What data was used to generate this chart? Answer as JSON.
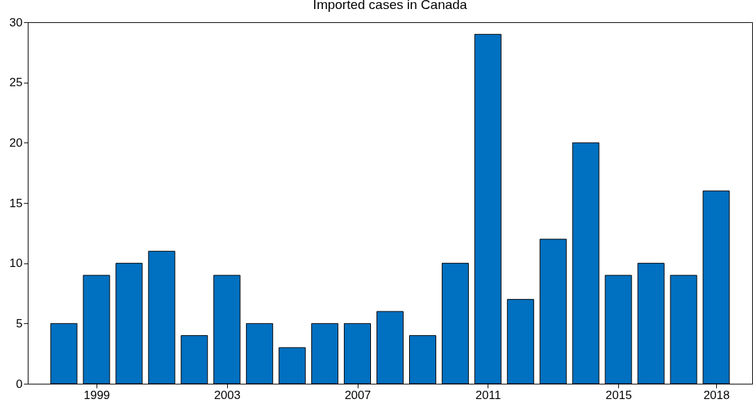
{
  "chart_data": {
    "type": "bar",
    "title": "Imported cases in Canada",
    "x": [
      1998,
      1999,
      2000,
      2001,
      2002,
      2003,
      2004,
      2005,
      2006,
      2007,
      2008,
      2009,
      2010,
      2011,
      2012,
      2013,
      2014,
      2015,
      2016,
      2017,
      2018
    ],
    "values": [
      5,
      9,
      10,
      11,
      4,
      9,
      5,
      3,
      5,
      5,
      6,
      4,
      10,
      29,
      7,
      12,
      20,
      9,
      10,
      9,
      16
    ],
    "color": "#0070c0",
    "xlim": [
      1997,
      2019
    ],
    "xticks": [
      1999,
      2003,
      2007,
      2011,
      2015,
      2018
    ],
    "ylim": [
      0,
      30
    ],
    "yticks": [
      0,
      5,
      10,
      15,
      20,
      25,
      30
    ],
    "grid": false
  }
}
